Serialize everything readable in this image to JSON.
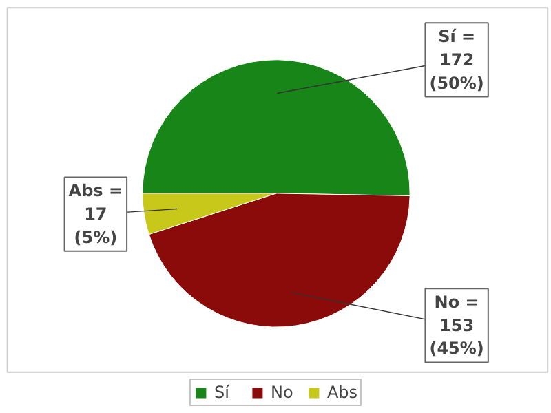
{
  "chart_data": {
    "type": "pie",
    "categories": [
      "Sí",
      "No",
      "Abs"
    ],
    "values": [
      172,
      153,
      17
    ],
    "colors": [
      "#178517",
      "#8b0a0a",
      "#c8c81a"
    ],
    "value_labels": [
      "Sí =\n172\n(50%)",
      "No =\n153\n(45%)",
      "Abs =\n17\n(5%)"
    ],
    "legend": "bottom"
  }
}
